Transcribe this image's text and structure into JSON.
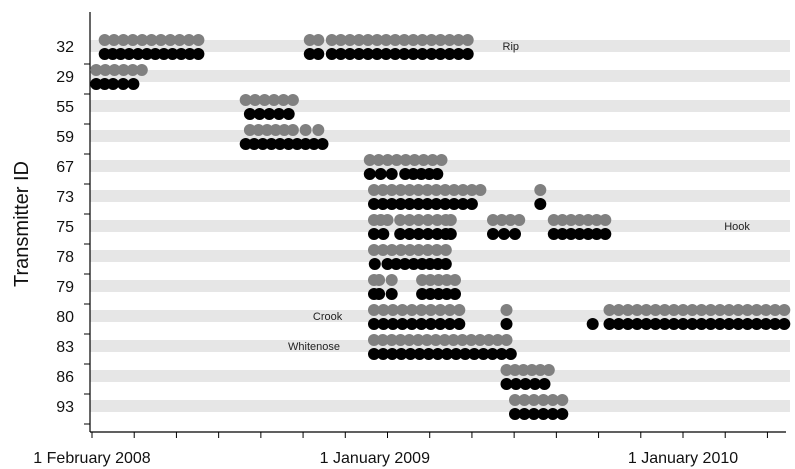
{
  "chart_data": {
    "type": "scatter",
    "title": "",
    "xlabel": "",
    "ylabel": "Transmitter ID",
    "x_axis": {
      "kind": "date",
      "range": [
        "2008-01-01",
        "2010-05-31"
      ],
      "tick_labels": [
        {
          "date": "2008-02-01",
          "label": "1 February 2008"
        },
        {
          "date": "2009-01-01",
          "label": "1 January 2009"
        },
        {
          "date": "2010-01-01",
          "label": "1 January 2010"
        }
      ]
    },
    "rows": [
      "32",
      "29",
      "55",
      "59",
      "67",
      "73",
      "75",
      "78",
      "79",
      "80",
      "83",
      "86",
      "93"
    ],
    "series": [
      {
        "key": "gray",
        "color": "#808080"
      },
      {
        "key": "black",
        "color": "#000000"
      }
    ],
    "detections": [
      {
        "id": "32",
        "series": "gray",
        "segments": [
          [
            "2008-02-16",
            "2008-06-06"
          ],
          [
            "2008-10-16",
            "2008-10-26"
          ],
          [
            "2008-11-11",
            "2009-04-21"
          ]
        ]
      },
      {
        "id": "32",
        "series": "black",
        "segments": [
          [
            "2008-02-16",
            "2008-03-06"
          ],
          [
            "2008-03-16",
            "2008-04-06"
          ],
          [
            "2008-04-16",
            "2008-06-06"
          ],
          [
            "2008-10-16",
            "2008-10-26"
          ],
          [
            "2008-11-11",
            "2009-04-21"
          ]
        ]
      },
      {
        "id": "29",
        "series": "gray",
        "segments": [
          [
            "2008-02-06",
            "2008-03-31"
          ]
        ]
      },
      {
        "id": "29",
        "series": "black",
        "segments": [
          [
            "2008-02-06",
            "2008-02-16"
          ],
          [
            "2008-02-26",
            "2008-03-21"
          ]
        ]
      },
      {
        "id": "55",
        "series": "gray",
        "segments": [
          [
            "2008-08-01",
            "2008-09-26"
          ]
        ]
      },
      {
        "id": "55",
        "series": "black",
        "segments": [
          [
            "2008-08-06",
            "2008-09-21"
          ]
        ]
      },
      {
        "id": "59",
        "series": "gray",
        "segments": [
          [
            "2008-08-06",
            "2008-09-26"
          ],
          [
            "2008-10-11",
            "2008-10-11"
          ],
          [
            "2008-10-26",
            "2008-10-26"
          ]
        ]
      },
      {
        "id": "59",
        "series": "black",
        "segments": [
          [
            "2008-08-01",
            "2008-10-01"
          ],
          [
            "2008-10-11",
            "2008-10-31"
          ]
        ]
      },
      {
        "id": "67",
        "series": "gray",
        "segments": [
          [
            "2008-12-26",
            "2009-03-21"
          ]
        ]
      },
      {
        "id": "67",
        "series": "black",
        "segments": [
          [
            "2008-12-26",
            "2009-01-21"
          ],
          [
            "2009-02-06",
            "2009-03-16"
          ]
        ]
      },
      {
        "id": "73",
        "series": "gray",
        "segments": [
          [
            "2008-12-31",
            "2009-04-26"
          ],
          [
            "2009-05-06",
            "2009-05-06"
          ],
          [
            "2009-07-16",
            "2009-07-21"
          ]
        ]
      },
      {
        "id": "73",
        "series": "black",
        "segments": [
          [
            "2008-12-31",
            "2009-04-26"
          ],
          [
            "2009-07-16",
            "2009-07-16"
          ]
        ]
      },
      {
        "id": "75",
        "series": "gray",
        "segments": [
          [
            "2008-12-31",
            "2009-01-16"
          ],
          [
            "2009-01-31",
            "2009-03-16"
          ],
          [
            "2009-03-26",
            "2009-04-01"
          ],
          [
            "2009-05-21",
            "2009-06-21"
          ],
          [
            "2009-08-01",
            "2009-10-01"
          ]
        ]
      },
      {
        "id": "75",
        "series": "black",
        "segments": [
          [
            "2008-12-31",
            "2009-01-11"
          ],
          [
            "2009-01-31",
            "2009-03-16"
          ],
          [
            "2009-03-26",
            "2009-04-01"
          ],
          [
            "2009-05-21",
            "2009-06-16"
          ],
          [
            "2009-08-01",
            "2009-10-01"
          ]
        ]
      },
      {
        "id": "78",
        "series": "gray",
        "segments": [
          [
            "2008-12-31",
            "2009-03-26"
          ]
        ]
      },
      {
        "id": "78",
        "series": "black",
        "segments": [
          [
            "2009-01-01",
            "2009-01-06"
          ],
          [
            "2009-01-16",
            "2009-02-16"
          ],
          [
            "2009-02-26",
            "2009-03-26"
          ]
        ]
      },
      {
        "id": "79",
        "series": "gray",
        "segments": [
          [
            "2008-12-31",
            "2009-01-06"
          ],
          [
            "2009-01-21",
            "2009-01-26"
          ],
          [
            "2009-02-26",
            "2009-04-06"
          ]
        ]
      },
      {
        "id": "79",
        "series": "black",
        "segments": [
          [
            "2008-12-31",
            "2009-01-06"
          ],
          [
            "2009-01-21",
            "2009-01-26"
          ],
          [
            "2009-02-26",
            "2009-04-06"
          ]
        ]
      },
      {
        "id": "80",
        "series": "gray",
        "segments": [
          [
            "2008-12-31",
            "2009-04-11"
          ],
          [
            "2009-06-06",
            "2009-06-06"
          ],
          [
            "2009-10-06",
            "2010-05-01"
          ]
        ]
      },
      {
        "id": "80",
        "series": "black",
        "segments": [
          [
            "2008-12-31",
            "2009-04-11"
          ],
          [
            "2009-06-06",
            "2009-06-06"
          ],
          [
            "2009-09-16",
            "2009-09-16"
          ],
          [
            "2009-10-06",
            "2010-05-01"
          ]
        ]
      },
      {
        "id": "83",
        "series": "gray",
        "segments": [
          [
            "2008-12-31",
            "2009-06-06"
          ]
        ]
      },
      {
        "id": "83",
        "series": "black",
        "segments": [
          [
            "2008-12-31",
            "2009-06-11"
          ]
        ]
      },
      {
        "id": "86",
        "series": "gray",
        "segments": [
          [
            "2009-06-06",
            "2009-07-26"
          ]
        ]
      },
      {
        "id": "86",
        "series": "black",
        "segments": [
          [
            "2009-06-06",
            "2009-07-21"
          ]
        ]
      },
      {
        "id": "93",
        "series": "gray",
        "segments": [
          [
            "2009-06-16",
            "2009-08-11"
          ]
        ]
      },
      {
        "id": "93",
        "series": "black",
        "segments": [
          [
            "2009-06-16",
            "2009-08-11"
          ]
        ]
      }
    ],
    "annotations": [
      {
        "text": "Rip",
        "row": "32",
        "date": "2009-06-11"
      },
      {
        "text": "Hook",
        "row": "75",
        "date": "2010-03-06"
      },
      {
        "text": "Crook",
        "row": "80",
        "date": "2008-11-06"
      },
      {
        "text": "Whitenose",
        "row": "83",
        "date": "2008-10-21"
      }
    ],
    "row_bands": true,
    "grid": false,
    "legend": "none"
  }
}
